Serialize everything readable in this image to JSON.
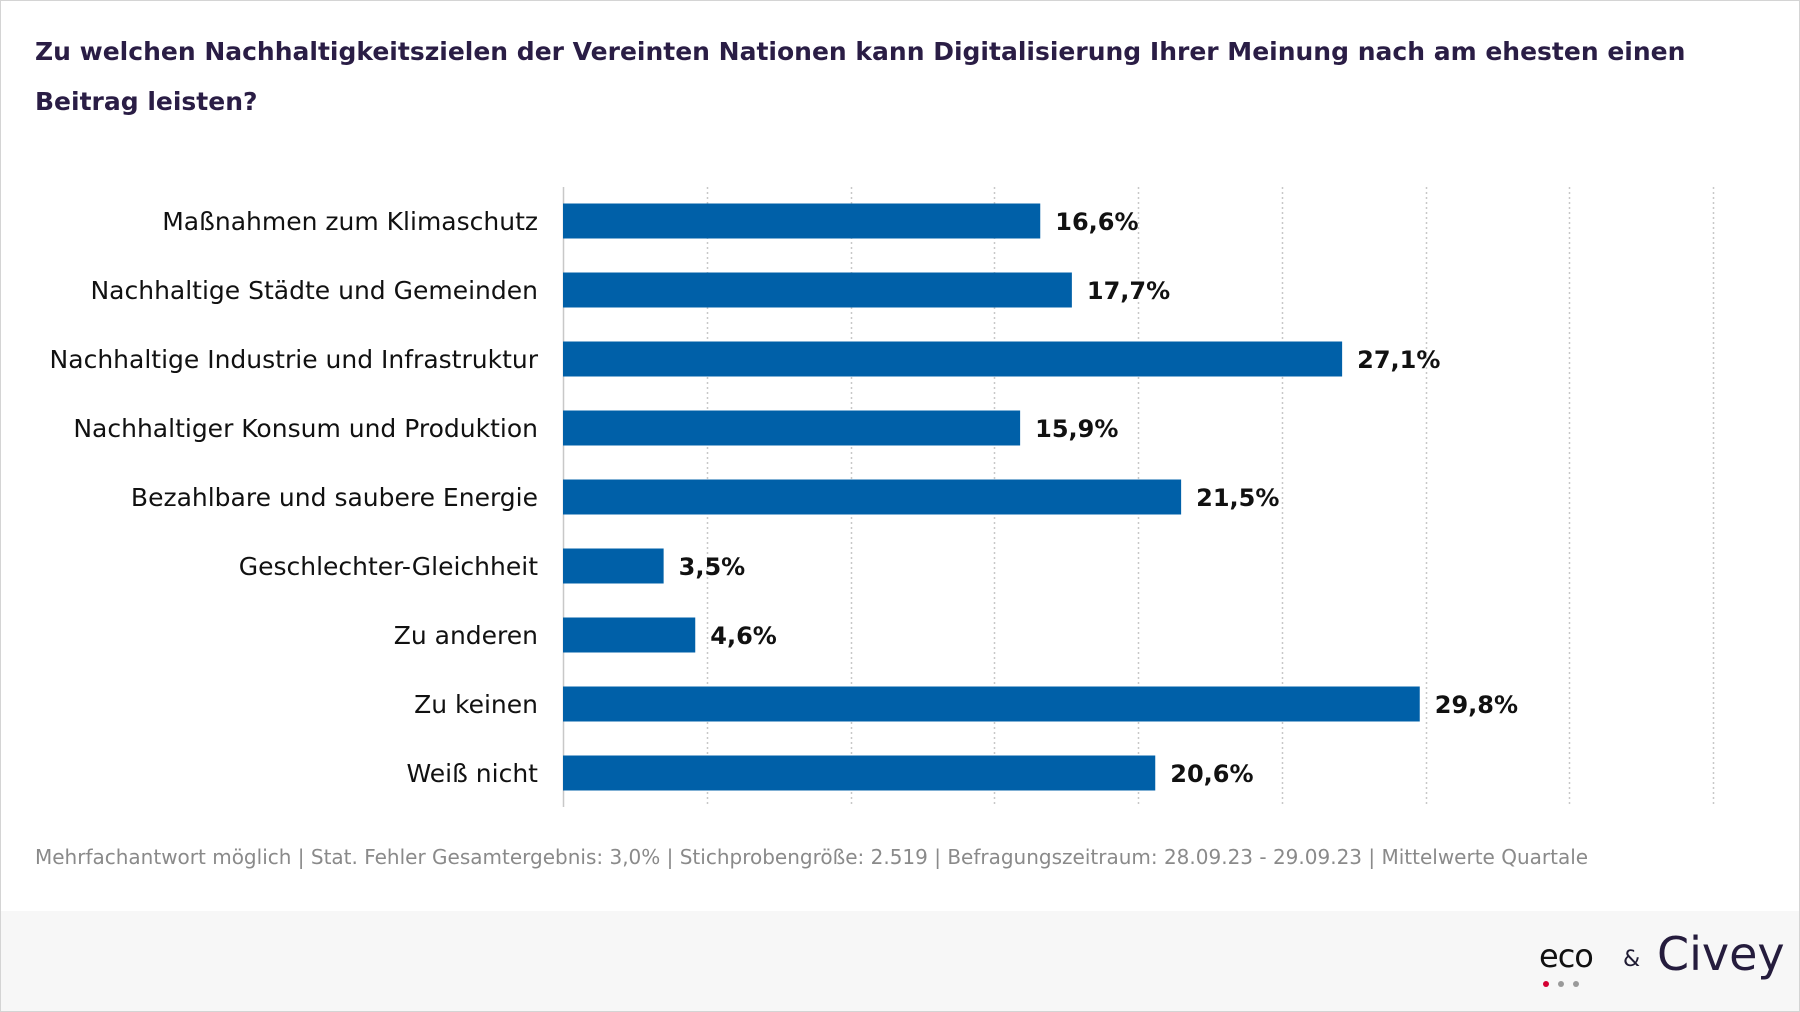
{
  "title": "Zu welchen Nachhaltigkeitszielen der Vereinten Nationen kann Digitalisierung Ihrer Meinung nach am ehesten einen Beitrag leisten?",
  "footnote": "Mehrfachantwort möglich | Stat. Fehler Gesamtergebnis: 3,0% | Stichprobengröße: 2.519 | Befragungszeitraum: 28.09.23 - 29.09.23 | Mittelwerte Quartale",
  "logos": {
    "eco": "eco",
    "ampersand": "&",
    "civey": "Civey"
  },
  "colors": {
    "bar": "#0060a8",
    "grid": "#c8c8c8",
    "title": "#2a1d45",
    "eco_dot_red": "#d40032",
    "eco_dot_grey": "#9a9a9a"
  },
  "chart_data": {
    "type": "bar",
    "orientation": "horizontal",
    "categories": [
      "Maßnahmen zum Klimaschutz",
      "Nachhaltige Städte und Gemeinden",
      "Nachhaltige Industrie und Infrastruktur",
      "Nachhaltiger Konsum und Produktion",
      "Bezahlbare und saubere Energie",
      "Geschlechter-Gleichheit",
      "Zu anderen",
      "Zu keinen",
      "Weiß nicht"
    ],
    "values": [
      16.6,
      17.7,
      27.1,
      15.9,
      21.5,
      3.5,
      4.6,
      29.8,
      20.6
    ],
    "value_labels": [
      "16,6%",
      "17,7%",
      "27,1%",
      "15,9%",
      "21,5%",
      "3,5%",
      "4,6%",
      "29,8%",
      "20,6%"
    ],
    "xlim": [
      0,
      40
    ],
    "grid": true,
    "unit": "%"
  }
}
